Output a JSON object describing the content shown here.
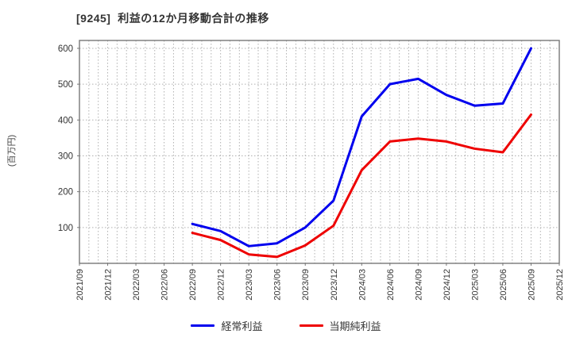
{
  "header": {
    "title": "[9245]  利益の12か月移動合計の推移"
  },
  "y_axis": {
    "unit_label": "(百万円)",
    "tick_values": [
      100,
      200,
      300,
      400,
      500,
      600
    ]
  },
  "x_axis": {
    "tick_labels": [
      "2021/09",
      "2021/12",
      "2022/03",
      "2022/06",
      "2022/09",
      "2022/12",
      "2023/03",
      "2023/06",
      "2023/09",
      "2023/12",
      "2024/03",
      "2024/06",
      "2024/09",
      "2024/12",
      "2025/03",
      "2025/06",
      "2025/09",
      "2025/12"
    ]
  },
  "legend": {
    "items": [
      {
        "label": "経常利益",
        "color": "#0000ee"
      },
      {
        "label": "当期純利益",
        "color": "#ee0000"
      }
    ]
  },
  "chart_data": {
    "type": "line",
    "title": "[9245]  利益の12か月移動合計の推移",
    "ylabel": "(百万円)",
    "xlabel": "",
    "categories": [
      "2021/09",
      "2021/12",
      "2022/03",
      "2022/06",
      "2022/09",
      "2022/12",
      "2023/03",
      "2023/06",
      "2023/09",
      "2023/12",
      "2024/03",
      "2024/06",
      "2024/09",
      "2024/12",
      "2025/03",
      "2025/06",
      "2025/09",
      "2025/12"
    ],
    "series": [
      {
        "name": "経常利益",
        "color": "#0000ee",
        "start_index": 4,
        "x": [
          "2022/09",
          "2022/12",
          "2023/03",
          "2023/06",
          "2023/09",
          "2023/12",
          "2024/03",
          "2024/06",
          "2024/09",
          "2024/12",
          "2025/03",
          "2025/06",
          "2025/09"
        ],
        "values": [
          110,
          90,
          48,
          56,
          100,
          175,
          410,
          500,
          515,
          470,
          440,
          446,
          600
        ]
      },
      {
        "name": "当期純利益",
        "color": "#ee0000",
        "start_index": 4,
        "x": [
          "2022/09",
          "2022/12",
          "2023/03",
          "2023/06",
          "2023/09",
          "2023/12",
          "2024/03",
          "2024/06",
          "2024/09",
          "2024/12",
          "2025/03",
          "2025/06",
          "2025/09"
        ],
        "values": [
          85,
          65,
          25,
          18,
          50,
          105,
          260,
          340,
          348,
          340,
          320,
          310,
          415
        ]
      }
    ],
    "ylim": [
      0,
      622
    ],
    "y_ticks": [
      100,
      200,
      300,
      400,
      500,
      600
    ],
    "grid": true,
    "minor_vertical_grid_per_interval": 3,
    "legend_position": "bottom",
    "styles": {
      "grid_color": "#b0b0b0",
      "axis_color": "#777777",
      "tick_label_color": "#333333",
      "line_width": 3
    }
  }
}
